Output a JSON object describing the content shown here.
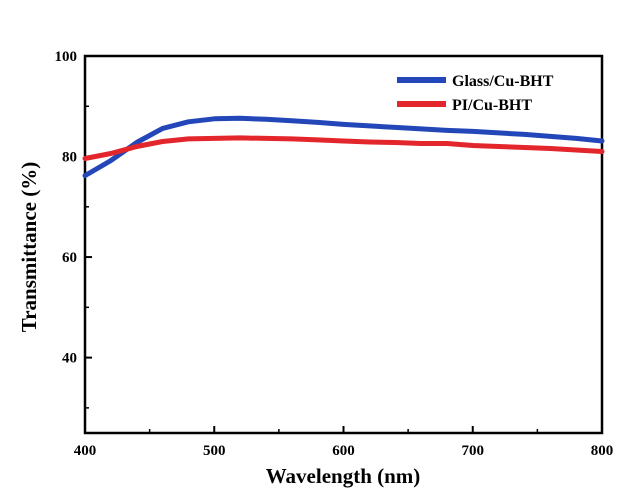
{
  "chart_data": {
    "type": "line",
    "title": "",
    "xlabel": "Wavelength (nm)",
    "ylabel": "Transmittance (%)",
    "xlim": [
      400,
      800
    ],
    "ylim": [
      25,
      100
    ],
    "x_ticks": [
      400,
      500,
      600,
      700,
      800
    ],
    "y_ticks": [
      40,
      60,
      80,
      100
    ],
    "x_tick_labels": [
      "400",
      "500",
      "600",
      "700",
      "800"
    ],
    "y_tick_labels": [
      "40",
      "60",
      "80",
      "100"
    ],
    "grid": false,
    "legend_position": "top-right",
    "series": [
      {
        "name": "Glass/Cu-BHT",
        "color": "#2346b8",
        "x": [
          400,
          420,
          440,
          460,
          480,
          500,
          520,
          540,
          560,
          580,
          600,
          620,
          640,
          660,
          680,
          700,
          720,
          740,
          760,
          780,
          800
        ],
        "y": [
          76.2,
          79.2,
          82.8,
          85.6,
          86.9,
          87.5,
          87.6,
          87.4,
          87.1,
          86.8,
          86.4,
          86.1,
          85.8,
          85.5,
          85.2,
          85.0,
          84.7,
          84.4,
          84.0,
          83.6,
          83.1
        ]
      },
      {
        "name": "PI/Cu-BHT",
        "color": "#e3262b",
        "x": [
          400,
          420,
          440,
          460,
          480,
          500,
          520,
          540,
          560,
          580,
          600,
          620,
          640,
          660,
          680,
          700,
          720,
          740,
          760,
          780,
          800
        ],
        "y": [
          79.6,
          80.6,
          82.0,
          83.0,
          83.5,
          83.6,
          83.7,
          83.6,
          83.5,
          83.3,
          83.1,
          82.9,
          82.8,
          82.6,
          82.6,
          82.2,
          82.0,
          81.8,
          81.6,
          81.3,
          81.0
        ]
      }
    ]
  }
}
